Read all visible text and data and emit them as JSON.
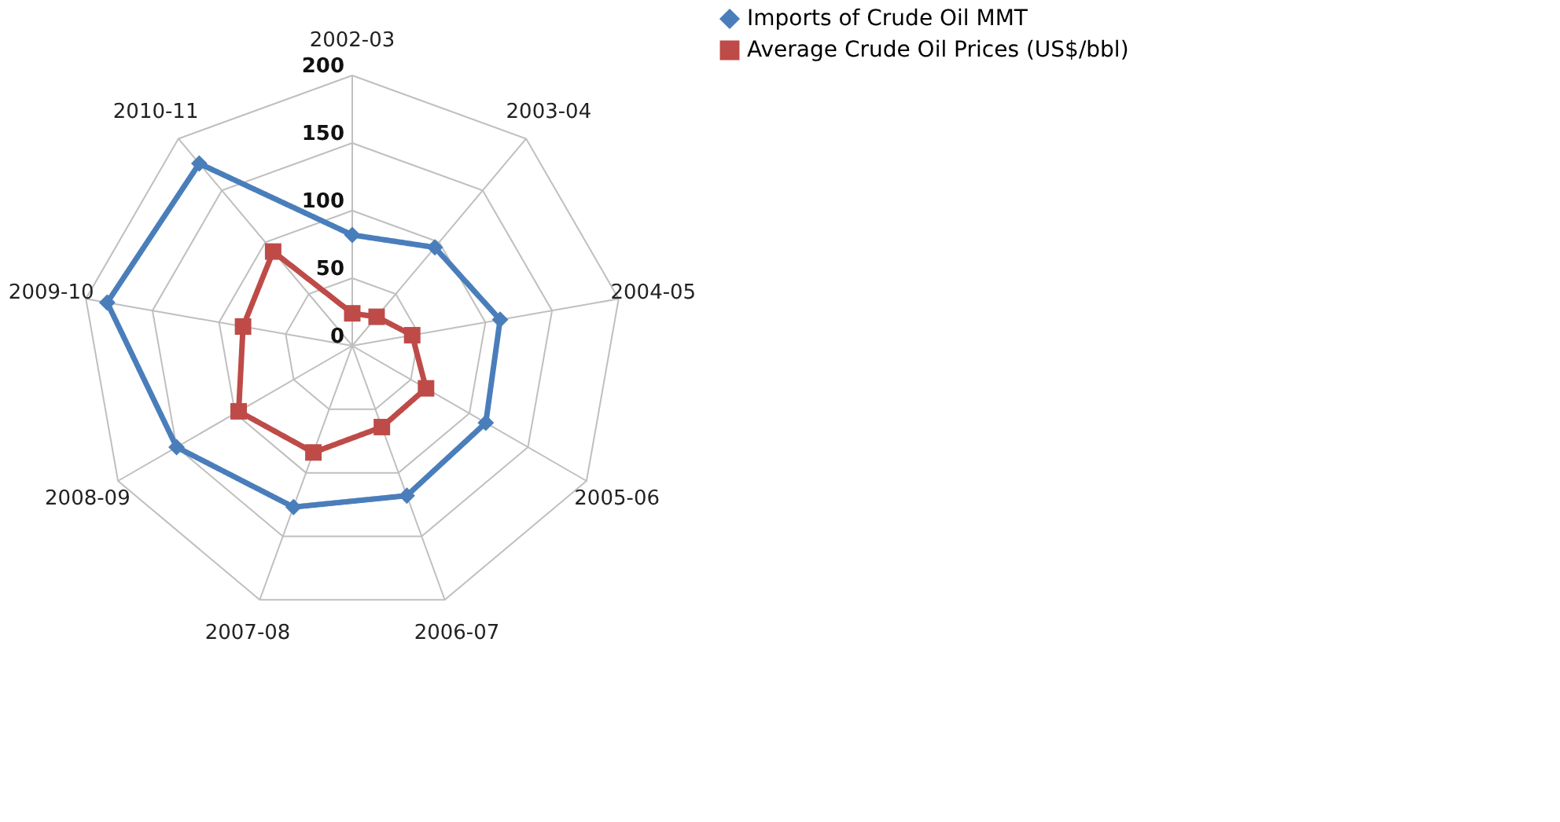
{
  "chart_data": {
    "type": "radar",
    "categories": [
      "2002-03",
      "2003-04",
      "2004-05",
      "2005-06",
      "2006-07",
      "2007-08",
      "2008-09",
      "2009-10",
      "2010-11"
    ],
    "series": [
      {
        "name": "Imports of Crude Oil MMT",
        "color": "#4a7ebb",
        "marker": "diamond",
        "values": [
          82,
          95,
          111,
          114,
          118,
          127,
          150,
          184,
          176
        ]
      },
      {
        "name": "Average Crude Oil Prices (US$/bbl)",
        "color": "#be4b48",
        "marker": "square",
        "values": [
          24,
          28,
          45,
          63,
          64,
          84,
          97,
          82,
          91
        ]
      }
    ],
    "ylim": [
      0,
      200
    ],
    "yticks": [
      0,
      50,
      100,
      150,
      200
    ],
    "grid": true,
    "legend": "right",
    "line_style": "solid"
  }
}
